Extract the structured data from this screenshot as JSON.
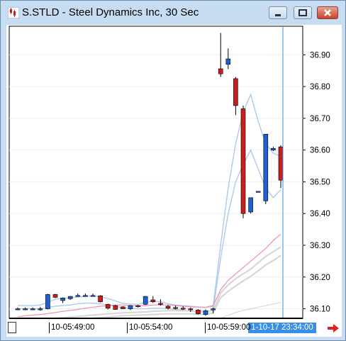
{
  "window": {
    "title": "S.STLD - Steel Dynamics Inc, 30 Sec"
  },
  "icons": {
    "app": "chart-icon",
    "minimize": "minimize-icon",
    "maximize": "maximize-icon",
    "close": "close-icon",
    "scroll_right": "right-arrow-icon"
  },
  "colors": {
    "up_candle": "#2060d0",
    "down_candle": "#c81e1e",
    "band": "#aacbec",
    "pink_ma": "#f08cb4",
    "grey_ma": "#d7d7d7",
    "cursor_line": "#3a8ee6"
  },
  "chart_data": {
    "type": "candlestick",
    "y_tick_labels": [
      "36.90",
      "36.80",
      "36.70",
      "36.60",
      "36.50",
      "36.40",
      "36.30",
      "36.20",
      "36.10"
    ],
    "y_ticks": [
      36.9,
      36.8,
      36.7,
      36.6,
      36.5,
      36.4,
      36.3,
      36.2,
      36.1
    ],
    "ylim": [
      36.07,
      36.99
    ],
    "x_labels": [
      "10-05:49:00",
      "10-05:54:00",
      "10-05:59:00"
    ],
    "cursor_label": "1-10-17 23:34:00",
    "candles": [
      {
        "o": 36.1,
        "h": 36.104,
        "l": 36.096,
        "c": 36.1
      },
      {
        "o": 36.1,
        "h": 36.104,
        "l": 36.096,
        "c": 36.1
      },
      {
        "o": 36.1,
        "h": 36.104,
        "l": 36.096,
        "c": 36.1
      },
      {
        "o": 36.1,
        "h": 36.106,
        "l": 36.094,
        "c": 36.1
      },
      {
        "o": 36.1,
        "h": 36.147,
        "l": 36.098,
        "c": 36.145
      },
      {
        "o": 36.145,
        "h": 36.147,
        "l": 36.134,
        "c": 36.136
      },
      {
        "o": 36.126,
        "h": 36.136,
        "l": 36.118,
        "c": 36.134
      },
      {
        "o": 36.132,
        "h": 36.14,
        "l": 36.128,
        "c": 36.139
      },
      {
        "o": 36.142,
        "h": 36.148,
        "l": 36.14,
        "c": 36.142
      },
      {
        "o": 36.142,
        "h": 36.148,
        "l": 36.14,
        "c": 36.142
      },
      {
        "o": 36.142,
        "h": 36.148,
        "l": 36.14,
        "c": 36.142
      },
      {
        "o": 36.141,
        "h": 36.143,
        "l": 36.12,
        "c": 36.122
      },
      {
        "o": 36.114,
        "h": 36.116,
        "l": 36.098,
        "c": 36.102
      },
      {
        "o": 36.11,
        "h": 36.112,
        "l": 36.097,
        "c": 36.098
      },
      {
        "o": 36.106,
        "h": 36.108,
        "l": 36.1,
        "c": 36.1
      },
      {
        "o": 36.1,
        "h": 36.112,
        "l": 36.096,
        "c": 36.11
      },
      {
        "o": 36.11,
        "h": 36.112,
        "l": 36.104,
        "c": 36.108
      },
      {
        "o": 36.114,
        "h": 36.14,
        "l": 36.112,
        "c": 36.139
      },
      {
        "o": 36.128,
        "h": 36.14,
        "l": 36.118,
        "c": 36.122
      },
      {
        "o": 36.117,
        "h": 36.13,
        "l": 36.11,
        "c": 36.116
      },
      {
        "o": 36.108,
        "h": 36.112,
        "l": 36.098,
        "c": 36.102
      },
      {
        "o": 36.104,
        "h": 36.11,
        "l": 36.098,
        "c": 36.102
      },
      {
        "o": 36.102,
        "h": 36.108,
        "l": 36.096,
        "c": 36.1
      },
      {
        "o": 36.1,
        "h": 36.104,
        "l": 36.09,
        "c": 36.098
      },
      {
        "o": 36.096,
        "h": 36.099,
        "l": 36.082,
        "c": 36.084
      },
      {
        "o": 36.082,
        "h": 36.098,
        "l": 36.078,
        "c": 36.094
      },
      {
        "o": 36.098,
        "h": 36.104,
        "l": 36.086,
        "c": 36.1
      },
      {
        "o": 36.856,
        "h": 36.969,
        "l": 36.83,
        "c": 36.84
      },
      {
        "o": 36.87,
        "h": 36.92,
        "l": 36.855,
        "c": 36.887
      },
      {
        "o": 36.825,
        "h": 36.83,
        "l": 36.71,
        "c": 36.74
      },
      {
        "o": 36.73,
        "h": 36.74,
        "l": 36.385,
        "c": 36.4
      },
      {
        "o": 36.405,
        "h": 36.45,
        "l": 36.4,
        "c": 36.45
      },
      {
        "o": 36.47,
        "h": 36.47,
        "l": 36.47,
        "c": 36.47
      },
      {
        "o": 36.44,
        "h": 36.65,
        "l": 36.43,
        "c": 36.65
      },
      {
        "o": 36.6,
        "h": 36.61,
        "l": 36.597,
        "c": 36.605
      },
      {
        "o": 36.61,
        "h": 36.615,
        "l": 36.48,
        "c": 36.505
      }
    ],
    "series": [
      {
        "values": [
          36.11,
          36.11,
          36.11,
          36.112,
          36.12,
          36.13,
          36.133,
          36.135,
          36.137,
          36.139,
          36.14,
          36.138,
          36.132,
          36.125,
          36.117,
          36.115,
          36.114,
          36.12,
          36.124,
          36.122,
          36.116,
          36.112,
          36.11,
          36.108,
          36.106,
          36.104,
          36.108,
          36.3,
          36.48,
          36.62,
          36.72,
          36.775,
          36.69,
          36.62,
          36.59,
          36.58
        ]
      },
      {
        "values": [
          36.1,
          36.1,
          36.1,
          36.1,
          36.104,
          36.108,
          36.11,
          36.112,
          36.116,
          36.118,
          36.118,
          36.116,
          36.112,
          36.108,
          36.103,
          36.102,
          36.1,
          36.1,
          36.102,
          36.102,
          36.1,
          36.098,
          36.096,
          36.092,
          36.09,
          36.09,
          36.095,
          36.26,
          36.4,
          36.5,
          36.555,
          36.6,
          36.54,
          36.48,
          36.45,
          36.475
        ]
      },
      {
        "values": [
          36.075,
          36.078,
          36.08,
          36.082,
          36.085,
          36.088,
          36.092,
          36.095,
          36.098,
          36.102,
          36.105,
          36.108,
          36.11,
          36.112,
          36.112,
          36.11,
          36.11,
          36.11,
          36.112,
          36.112,
          36.112,
          36.11,
          36.108,
          36.106,
          36.105,
          36.105,
          36.11,
          36.16,
          36.19,
          36.21,
          36.23,
          36.25,
          36.27,
          36.29,
          36.315,
          36.335
        ]
      },
      {
        "values": [
          36.06,
          36.062,
          36.064,
          36.066,
          36.068,
          36.07,
          36.072,
          36.074,
          36.076,
          36.078,
          36.08,
          36.082,
          36.084,
          36.086,
          36.087,
          36.088,
          36.089,
          36.09,
          36.092,
          36.093,
          36.094,
          36.094,
          36.094,
          36.093,
          36.092,
          36.092,
          36.095,
          36.15,
          36.175,
          36.195,
          36.21,
          36.225,
          36.245,
          36.265,
          36.28,
          36.295
        ]
      },
      {
        "values": [
          36.05,
          36.052,
          36.054,
          36.056,
          36.058,
          36.06,
          36.062,
          36.064,
          36.066,
          36.068,
          36.07,
          36.072,
          36.074,
          36.076,
          36.078,
          36.079,
          36.08,
          36.081,
          36.082,
          36.083,
          36.084,
          36.084,
          36.084,
          36.084,
          36.083,
          36.083,
          36.086,
          36.135,
          36.155,
          36.172,
          36.188,
          36.202,
          36.22,
          36.238,
          36.252,
          36.268
        ]
      },
      {
        "values": [
          36.02,
          36.021,
          36.022,
          36.023,
          36.024,
          36.025,
          36.026,
          36.027,
          36.028,
          36.03,
          36.031,
          36.032,
          36.033,
          36.034,
          36.035,
          36.036,
          36.037,
          36.038,
          36.039,
          36.04,
          36.041,
          36.042,
          36.043,
          36.044,
          36.045,
          36.046,
          36.048,
          36.07,
          36.08,
          36.088,
          36.095,
          36.1,
          36.105,
          36.11,
          36.115,
          36.12
        ]
      }
    ]
  }
}
